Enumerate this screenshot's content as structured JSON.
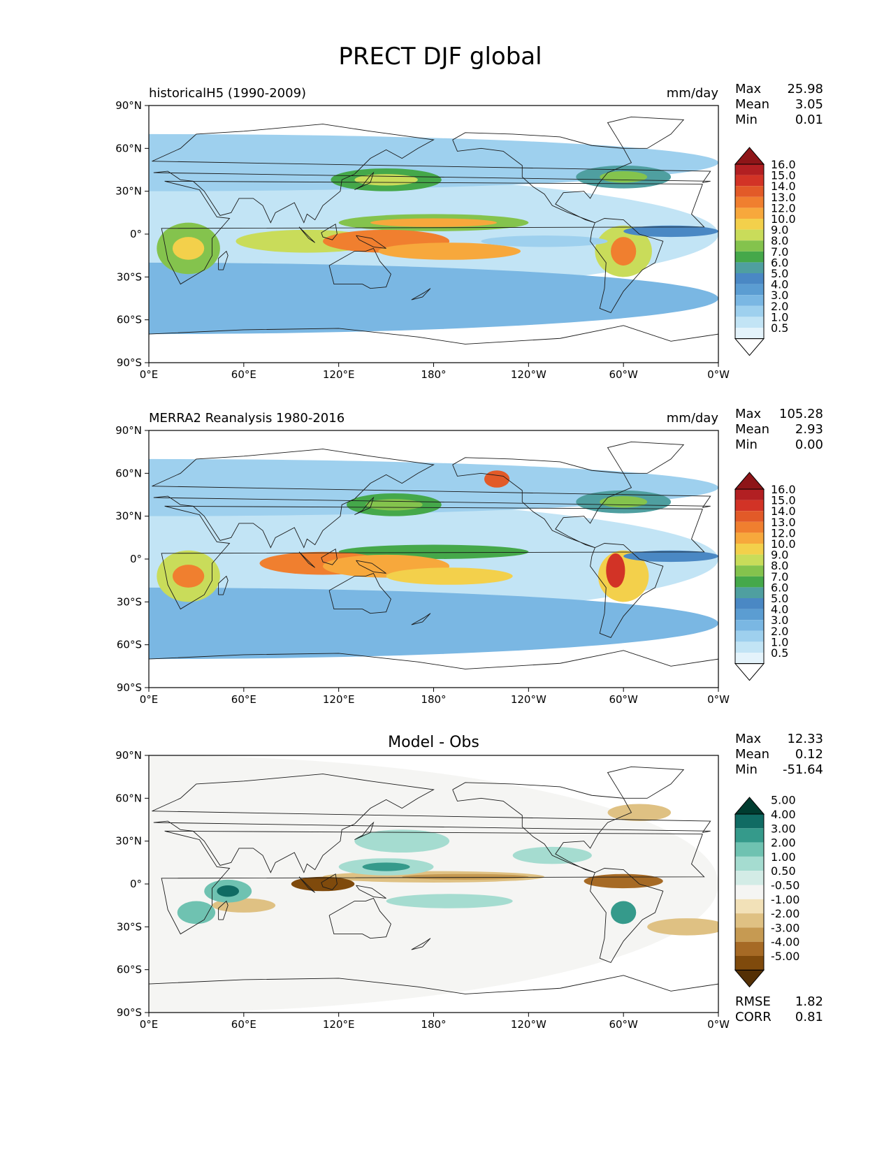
{
  "title": "PRECT DJF global",
  "lon_ticks": [
    "0°E",
    "60°E",
    "120°E",
    "180°",
    "120°W",
    "60°W",
    "0°W"
  ],
  "lat_ticks": [
    "90°N",
    "60°N",
    "30°N",
    "0°",
    "30°S",
    "60°S",
    "90°S"
  ],
  "precip_levels": [
    "0.5",
    "1.0",
    "2.0",
    "3.0",
    "4.0",
    "5.0",
    "6.0",
    "7.0",
    "8.0",
    "9.0",
    "10.0",
    "12.0",
    "13.0",
    "14.0",
    "15.0",
    "16.0"
  ],
  "diff_levels": [
    "-5.00",
    "-4.00",
    "-3.00",
    "-2.00",
    "-1.00",
    "-0.50",
    "0.50",
    "1.00",
    "2.00",
    "3.00",
    "4.00",
    "5.00"
  ],
  "colors": {
    "precip": [
      "#ffffff",
      "#e4f3fb",
      "#c2e4f5",
      "#9ed0ee",
      "#7ab7e3",
      "#5b9dd2",
      "#4a88c4",
      "#4f9fa0",
      "#45a84a",
      "#84c34d",
      "#c9dc5a",
      "#f3d04b",
      "#f7a83c",
      "#f07f2f",
      "#e25a28",
      "#d23326",
      "#b21f22",
      "#8e1518"
    ],
    "diff": [
      "#543005",
      "#7f4a0c",
      "#a66a25",
      "#c69a52",
      "#dfc183",
      "#f2e1b8",
      "#f5f5f3",
      "#d3ece6",
      "#a5dcd0",
      "#6fc2b1",
      "#359a8b",
      "#106b63",
      "#003c30"
    ]
  },
  "panels": [
    {
      "left_title": "historicalH5 (1990-2009)",
      "right_title": "mm/day",
      "stats": [
        {
          "label": "Max",
          "value": "25.98"
        },
        {
          "label": "Mean",
          "value": "3.05"
        },
        {
          "label": "Min",
          "value": "0.01"
        }
      ]
    },
    {
      "left_title": "MERRA2 Reanalysis 1980-2016",
      "right_title": "mm/day",
      "stats": [
        {
          "label": "Max",
          "value": "105.28"
        },
        {
          "label": "Mean",
          "value": "2.93"
        },
        {
          "label": "Min",
          "value": "0.00"
        }
      ]
    },
    {
      "center_title": "Model - Obs",
      "stats": [
        {
          "label": "Max",
          "value": "12.33"
        },
        {
          "label": "Mean",
          "value": "0.12"
        },
        {
          "label": "Min",
          "value": "-51.64"
        }
      ],
      "metrics": [
        {
          "label": "RMSE",
          "value": "1.82"
        },
        {
          "label": "CORR",
          "value": "0.81"
        }
      ]
    }
  ]
}
